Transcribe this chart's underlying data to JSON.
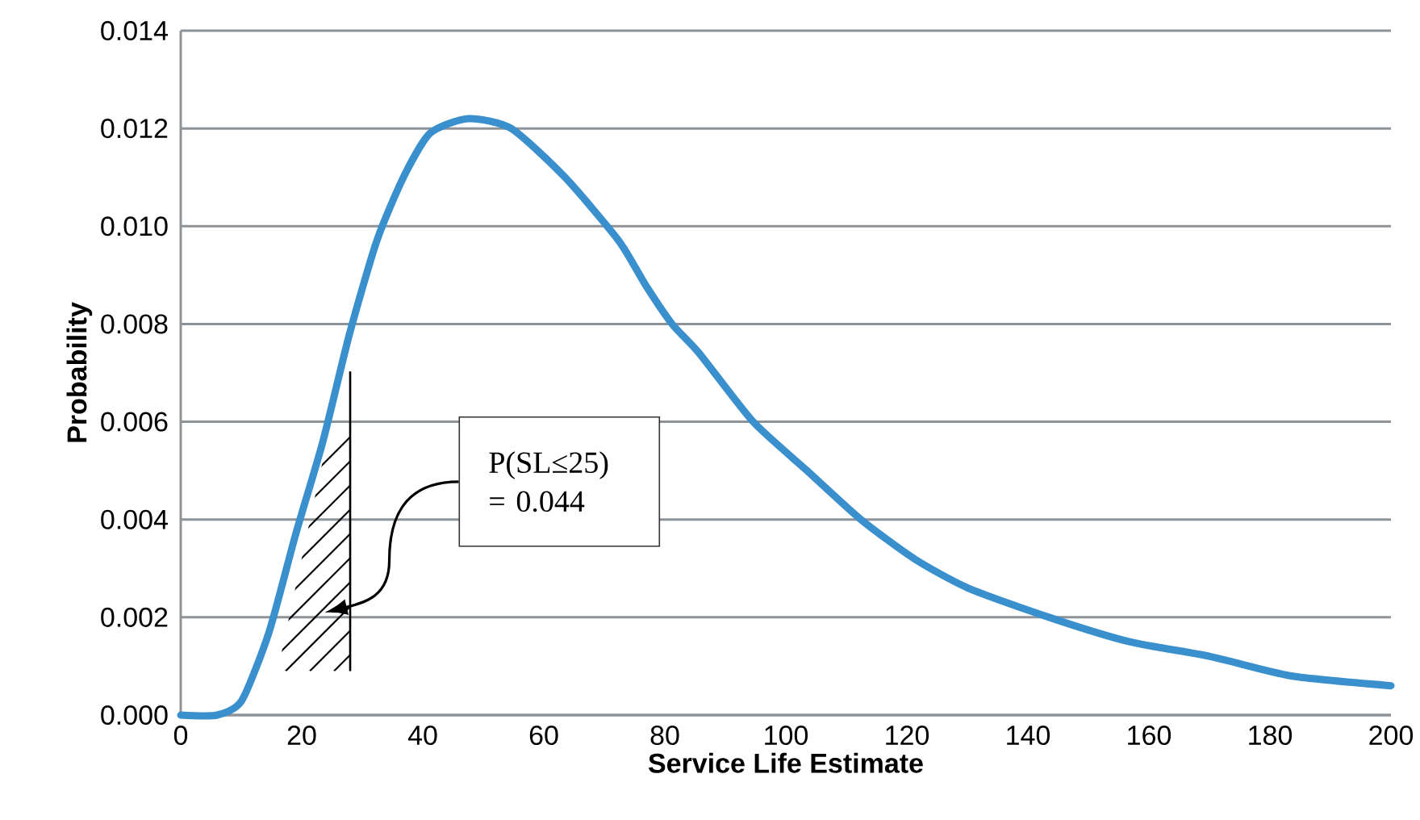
{
  "chart_data": {
    "type": "line",
    "xlabel": "Service Life Estimate",
    "ylabel": "Probability",
    "x": [
      0,
      6,
      10.1,
      14.6,
      19,
      23.5,
      27.9,
      32.4,
      36.8,
      41.2,
      47.5,
      54.6,
      63.5,
      72.4,
      76.8,
      81.2,
      85.7,
      94.6,
      103.5,
      112.4,
      121.2,
      130.1,
      143.5,
      156.8,
      170.1,
      183.5,
      200
    ],
    "series": [
      {
        "color": "#3a8fcd",
        "values": [
          0,
          0,
          0.0003,
          0.0017,
          0.0037,
          0.0056,
          0.0078,
          0.0097,
          0.011,
          0.0119,
          0.0122,
          0.012,
          0.011,
          0.0097,
          0.0088,
          0.008,
          0.0074,
          0.006,
          0.005,
          0.004,
          0.0032,
          0.0026,
          0.002,
          0.0015,
          0.0012,
          0.0008,
          0.0006
        ]
      }
    ],
    "xlim": [
      0,
      200
    ],
    "ylim": [
      0,
      0.014
    ],
    "xticks": [
      0,
      20,
      40,
      60,
      80,
      100,
      120,
      140,
      160,
      180,
      200
    ],
    "yticks": [
      {
        "value": 0,
        "label": "0.000"
      },
      {
        "value": 0.002,
        "label": "0.002"
      },
      {
        "value": 0.004,
        "label": "0.004"
      },
      {
        "value": 0.006,
        "label": "0.006"
      },
      {
        "value": 0.008,
        "label": "0.008"
      },
      {
        "value": 0.01,
        "label": "0.010"
      },
      {
        "value": 0.012,
        "label": "0.012"
      },
      {
        "value": 0.014,
        "label": "0.014"
      }
    ],
    "grid": "y",
    "annotations": [
      "P(SL≤25) = 0.044"
    ]
  }
}
